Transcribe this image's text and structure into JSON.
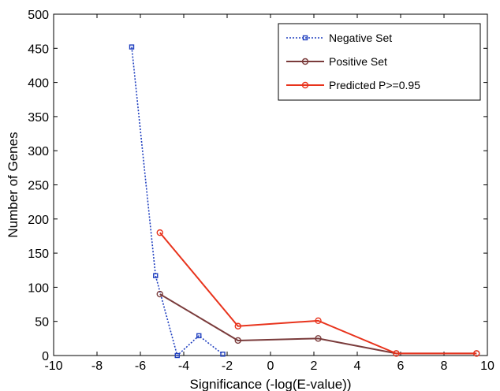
{
  "chart_data": {
    "type": "line",
    "title": "",
    "xlabel": "Significance (-log(E-value))",
    "ylabel": "Number of Genes",
    "xlim": [
      -10,
      10
    ],
    "ylim": [
      0,
      500
    ],
    "xticks": [
      -10,
      -8,
      -6,
      -4,
      -2,
      0,
      2,
      4,
      6,
      8,
      10
    ],
    "yticks": [
      0,
      50,
      100,
      150,
      200,
      250,
      300,
      350,
      400,
      450,
      500
    ],
    "grid": false,
    "legend_position": "top-right",
    "series": [
      {
        "name": "Negative Set",
        "color": "#1f3fbf",
        "line_style": "dotted",
        "marker": "square",
        "x": [
          -6.4,
          -5.3,
          -4.3,
          -3.3,
          -2.2
        ],
        "y": [
          452,
          117,
          0,
          29,
          2
        ]
      },
      {
        "name": "Positive Set",
        "color": "#7a3b3b",
        "line_style": "solid",
        "marker": "circle",
        "x": [
          -5.1,
          -1.5,
          2.2,
          5.8,
          9.5
        ],
        "y": [
          90,
          22,
          25,
          3,
          3
        ]
      },
      {
        "name": "Predicted P>=0.95",
        "color": "#e8331c",
        "line_style": "solid",
        "marker": "circle",
        "x": [
          -5.1,
          -1.5,
          2.2,
          5.8,
          9.5
        ],
        "y": [
          180,
          43,
          51,
          3,
          3
        ]
      }
    ]
  }
}
